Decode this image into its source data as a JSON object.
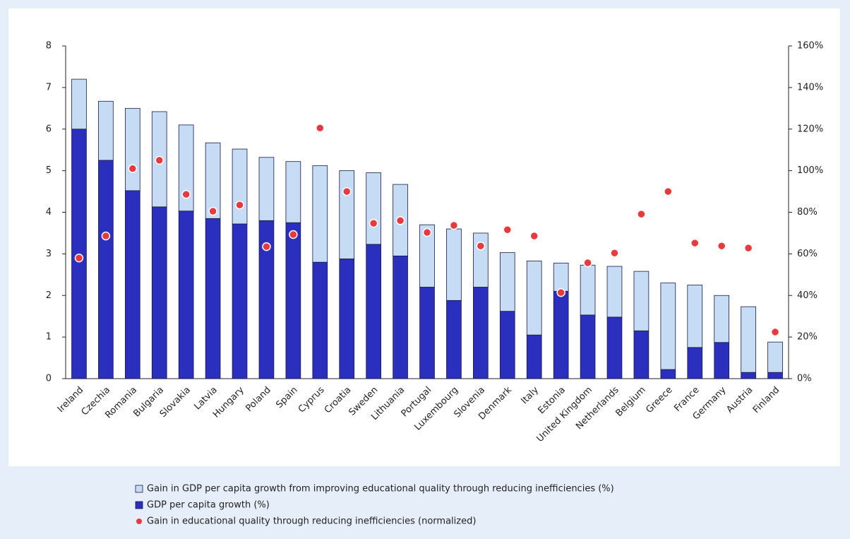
{
  "chart_data": {
    "type": "stacked_bar_dot",
    "categories": [
      "Ireland",
      "Czechia",
      "Romania",
      "Bulgaria",
      "Slovakia",
      "Latvia",
      "Hungary",
      "Poland",
      "Spain",
      "Cyprus",
      "Croatia",
      "Sweden",
      "Lithuania",
      "Portugal",
      "Luxembourg",
      "Slovenia",
      "Denmark",
      "Italy",
      "Estonia",
      "United Kingdom",
      "Netherlands",
      "Belgium",
      "Greece",
      "France",
      "Germany",
      "Austria",
      "Finland"
    ],
    "series": [
      {
        "name": "GDP per capita growth (%)",
        "color": "#2b2fbd",
        "values": [
          6.0,
          5.25,
          4.52,
          4.13,
          4.03,
          3.85,
          3.72,
          3.8,
          3.75,
          2.8,
          2.88,
          3.23,
          2.95,
          2.2,
          1.88,
          2.2,
          1.62,
          1.05,
          2.1,
          1.53,
          1.48,
          1.15,
          0.22,
          0.75,
          0.87,
          0.15,
          0.15
        ]
      },
      {
        "name": "Gain in GDP per capita growth from improving educational quality through reducing inefficiencies (%)",
        "color": "#c6dcf5",
        "values": [
          1.2,
          1.42,
          1.98,
          2.29,
          2.07,
          1.82,
          1.8,
          1.52,
          1.47,
          2.32,
          2.12,
          1.72,
          1.72,
          1.5,
          1.72,
          1.3,
          1.41,
          1.78,
          0.68,
          1.2,
          1.22,
          1.43,
          2.08,
          1.5,
          1.13,
          1.58,
          0.73
        ]
      },
      {
        "name": "Gain in educational quality through reducing inefficiencies (normalized)",
        "color": "#e8393f",
        "axis": "y2",
        "values": [
          58,
          68.6,
          101,
          105,
          88.6,
          80.5,
          83.5,
          63.5,
          69.3,
          120.5,
          90,
          74.7,
          76,
          70.3,
          73.7,
          63.8,
          71.6,
          68.6,
          41.4,
          55.7,
          60.4,
          79.1,
          90,
          65.2,
          63.8,
          62.8,
          22.4
        ]
      }
    ],
    "ylim": [
      0,
      8
    ],
    "yticks": [
      0,
      1,
      2,
      3,
      4,
      5,
      6,
      7,
      8
    ],
    "y2lim": [
      0,
      160
    ],
    "y2ticks": [
      {
        "value": 0,
        "label": "0%"
      },
      {
        "value": 20,
        "label": "20%"
      },
      {
        "value": 40,
        "label": "40%"
      },
      {
        "value": 60,
        "label": "60%"
      },
      {
        "value": 80,
        "label": "80%"
      },
      {
        "value": 100,
        "label": "100%"
      },
      {
        "value": 120,
        "label": "120%"
      },
      {
        "value": 140,
        "label": "140%"
      },
      {
        "value": 160,
        "label": "160%"
      }
    ]
  }
}
